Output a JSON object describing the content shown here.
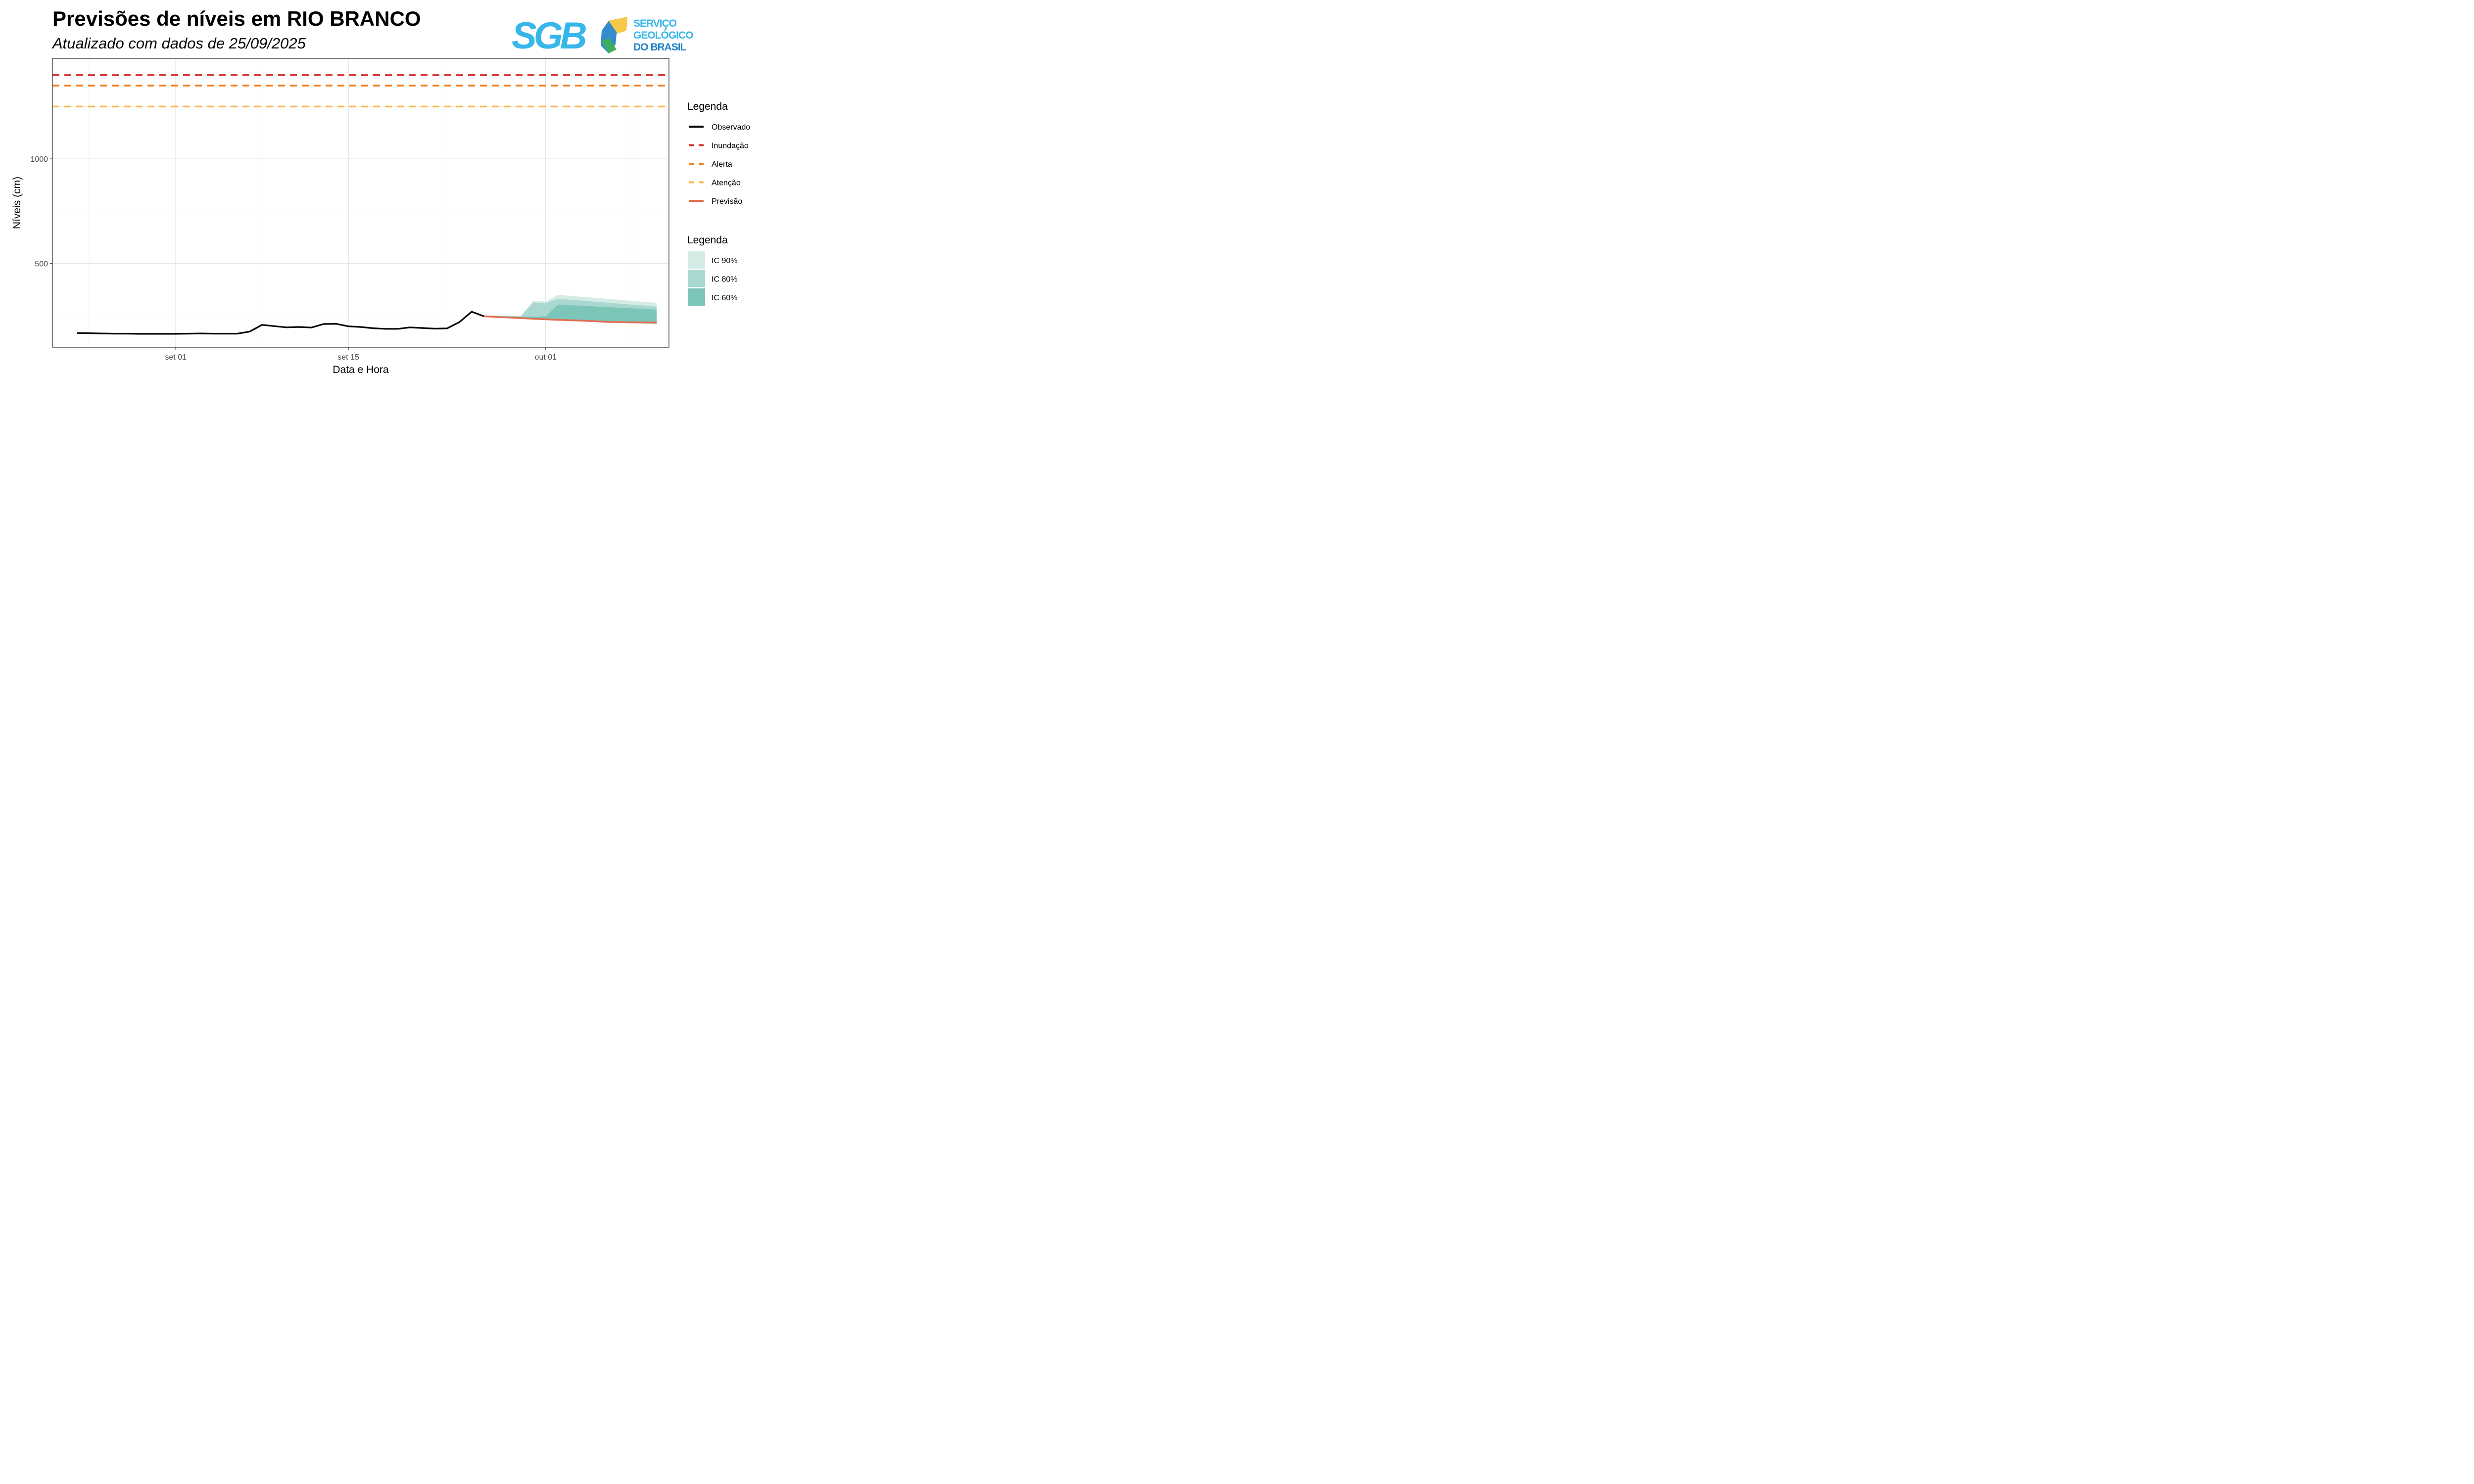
{
  "header": {
    "title": "Previsões de níveis em RIO BRANCO",
    "subtitle": "Atualizado com dados de 25/09/2025"
  },
  "logo": {
    "mark_text": "SGB",
    "lines": [
      "SERVIÇO",
      "GEOLÓGICO",
      "DO BRASIL"
    ],
    "colors": {
      "blue_light": "#37b6e9",
      "blue_dark": "#1e7fc6",
      "green": "#3fae5a",
      "yellow": "#f7c948"
    }
  },
  "chart_data": {
    "type": "line",
    "xlabel": "Data e Hora",
    "ylabel": "Níveis (cm)",
    "x_ticks": [
      "set 01",
      "set 15",
      "out 01"
    ],
    "y_ticks": [
      500,
      1000
    ],
    "x_range": [
      "2025-08-22",
      "2025-10-11"
    ],
    "ylim": [
      100,
      1480
    ],
    "grid": true,
    "legend_placement": "right",
    "thresholds": [
      {
        "name": "Inundação",
        "value": 1400,
        "color": "#d62f2c"
      },
      {
        "name": "Alerta",
        "value": 1350,
        "color": "#ef7d1b"
      },
      {
        "name": "Atenção",
        "value": 1250,
        "color": "#f7b84b"
      }
    ],
    "observed": {
      "name": "Observado",
      "color": "#000000",
      "points": [
        [
          "2025-08-24",
          168
        ],
        [
          "2025-08-25",
          167
        ],
        [
          "2025-08-26",
          166
        ],
        [
          "2025-08-27",
          165
        ],
        [
          "2025-08-28",
          165
        ],
        [
          "2025-08-29",
          164
        ],
        [
          "2025-08-30",
          164
        ],
        [
          "2025-08-31",
          164
        ],
        [
          "2025-09-01",
          164
        ],
        [
          "2025-09-02",
          165
        ],
        [
          "2025-09-03",
          166
        ],
        [
          "2025-09-04",
          165
        ],
        [
          "2025-09-05",
          165
        ],
        [
          "2025-09-06",
          165
        ],
        [
          "2025-09-07",
          175
        ],
        [
          "2025-09-08",
          207
        ],
        [
          "2025-09-09",
          201
        ],
        [
          "2025-09-10",
          195
        ],
        [
          "2025-09-11",
          197
        ],
        [
          "2025-09-12",
          194
        ],
        [
          "2025-09-13",
          211
        ],
        [
          "2025-09-14",
          212
        ],
        [
          "2025-09-15",
          200
        ],
        [
          "2025-09-16",
          197
        ],
        [
          "2025-09-17",
          191
        ],
        [
          "2025-09-18",
          188
        ],
        [
          "2025-09-19",
          188
        ],
        [
          "2025-09-20",
          195
        ],
        [
          "2025-09-21",
          192
        ],
        [
          "2025-09-22",
          189
        ],
        [
          "2025-09-23",
          190
        ],
        [
          "2025-09-24",
          220
        ],
        [
          "2025-09-25",
          270
        ],
        [
          "2025-09-26",
          248
        ]
      ]
    },
    "forecast": {
      "name": "Previsão",
      "color": "#e36d4f",
      "points": [
        [
          "2025-09-26",
          248
        ],
        [
          "2025-09-28",
          242
        ],
        [
          "2025-09-30",
          236
        ],
        [
          "2025-10-02",
          231
        ],
        [
          "2025-10-04",
          227
        ],
        [
          "2025-10-06",
          221
        ],
        [
          "2025-10-08",
          219
        ],
        [
          "2025-10-10",
          218
        ]
      ]
    },
    "intervals": [
      {
        "name": "IC 90%",
        "color": "#d4ebe6",
        "upper": [
          [
            "2025-09-26",
            252
          ],
          [
            "2025-09-29",
            250
          ],
          [
            "2025-09-30",
            322
          ],
          [
            "2025-10-01",
            318
          ],
          [
            "2025-10-02",
            350
          ],
          [
            "2025-10-10",
            312
          ]
        ],
        "lower": [
          [
            "2025-09-26",
            246
          ],
          [
            "2025-09-29",
            238
          ],
          [
            "2025-10-01",
            232
          ],
          [
            "2025-10-10",
            210
          ]
        ]
      },
      {
        "name": "IC 80%",
        "color": "#a8d8cf",
        "upper": [
          [
            "2025-09-26",
            250
          ],
          [
            "2025-09-29",
            248
          ],
          [
            "2025-09-30",
            314
          ],
          [
            "2025-10-01",
            310
          ],
          [
            "2025-10-02",
            332
          ],
          [
            "2025-10-10",
            294
          ]
        ],
        "lower": [
          [
            "2025-09-26",
            247
          ],
          [
            "2025-09-29",
            240
          ],
          [
            "2025-10-01",
            234
          ],
          [
            "2025-10-10",
            212
          ]
        ]
      },
      {
        "name": "IC 60%",
        "color": "#7cc5b9",
        "upper": [
          [
            "2025-09-26",
            249
          ],
          [
            "2025-09-28",
            247
          ],
          [
            "2025-09-30",
            246
          ],
          [
            "2025-10-01",
            248
          ],
          [
            "2025-10-02",
            304
          ],
          [
            "2025-10-10",
            280
          ]
        ],
        "lower": [
          [
            "2025-09-26",
            248
          ],
          [
            "2025-09-30",
            237
          ],
          [
            "2025-10-01",
            236
          ],
          [
            "2025-10-10",
            213
          ]
        ]
      }
    ],
    "legend_line": {
      "title": "Legenda",
      "entries": [
        {
          "label": "Observado",
          "color": "#000000",
          "dash": false
        },
        {
          "label": "Inundação",
          "color": "#d62f2c",
          "dash": true
        },
        {
          "label": "Alerta",
          "color": "#ef7d1b",
          "dash": true
        },
        {
          "label": "Atenção",
          "color": "#f7b84b",
          "dash": true
        },
        {
          "label": "Previsão",
          "color": "#e36d4f",
          "dash": false
        }
      ]
    },
    "legend_fill": {
      "title": "Legenda",
      "entries": [
        {
          "label": "IC 90%",
          "color": "#d4ebe6"
        },
        {
          "label": "IC 80%",
          "color": "#a8d8cf"
        },
        {
          "label": "IC 60%",
          "color": "#7cc5b9"
        }
      ]
    }
  }
}
